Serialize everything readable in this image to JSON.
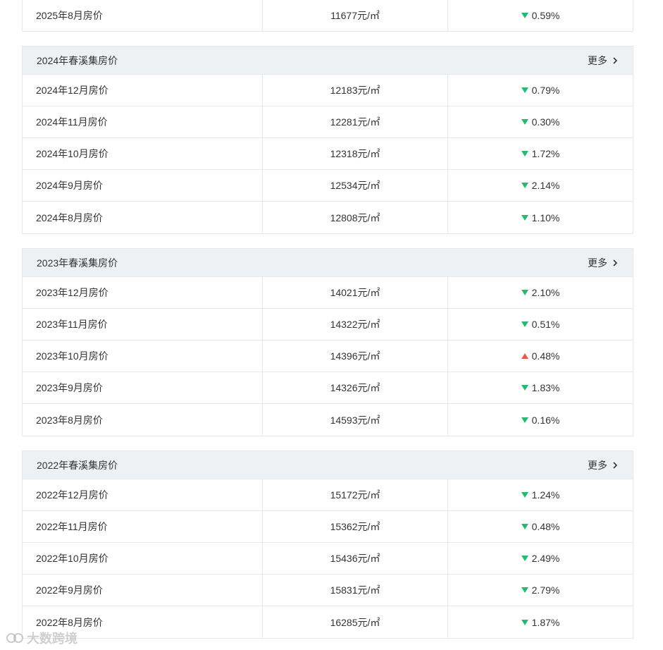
{
  "top_row": {
    "month": "2025年8月房价",
    "price": "11677元/㎡",
    "change": "0.59%",
    "dir": "down"
  },
  "sections": [
    {
      "title": "2024年春溪集房价",
      "more": "更多",
      "rows": [
        {
          "month": "2024年12月房价",
          "price": "12183元/㎡",
          "change": "0.79%",
          "dir": "down"
        },
        {
          "month": "2024年11月房价",
          "price": "12281元/㎡",
          "change": "0.30%",
          "dir": "down"
        },
        {
          "month": "2024年10月房价",
          "price": "12318元/㎡",
          "change": "1.72%",
          "dir": "down"
        },
        {
          "month": "2024年9月房价",
          "price": "12534元/㎡",
          "change": "2.14%",
          "dir": "down"
        },
        {
          "month": "2024年8月房价",
          "price": "12808元/㎡",
          "change": "1.10%",
          "dir": "down"
        }
      ]
    },
    {
      "title": "2023年春溪集房价",
      "more": "更多",
      "rows": [
        {
          "month": "2023年12月房价",
          "price": "14021元/㎡",
          "change": "2.10%",
          "dir": "down"
        },
        {
          "month": "2023年11月房价",
          "price": "14322元/㎡",
          "change": "0.51%",
          "dir": "down"
        },
        {
          "month": "2023年10月房价",
          "price": "14396元/㎡",
          "change": "0.48%",
          "dir": "up"
        },
        {
          "month": "2023年9月房价",
          "price": "14326元/㎡",
          "change": "1.83%",
          "dir": "down"
        },
        {
          "month": "2023年8月房价",
          "price": "14593元/㎡",
          "change": "0.16%",
          "dir": "down"
        }
      ]
    },
    {
      "title": "2022年春溪集房价",
      "more": "更多",
      "rows": [
        {
          "month": "2022年12月房价",
          "price": "15172元/㎡",
          "change": "1.24%",
          "dir": "down"
        },
        {
          "month": "2022年11月房价",
          "price": "15362元/㎡",
          "change": "0.48%",
          "dir": "down"
        },
        {
          "month": "2022年10月房价",
          "price": "15436元/㎡",
          "change": "2.49%",
          "dir": "down"
        },
        {
          "month": "2022年9月房价",
          "price": "15831元/㎡",
          "change": "2.79%",
          "dir": "down"
        },
        {
          "month": "2022年8月房价",
          "price": "16285元/㎡",
          "change": "1.87%",
          "dir": "down"
        }
      ]
    }
  ],
  "watermark": "大数跨境",
  "colors": {
    "down": "#2bb673",
    "up": "#e05b4b",
    "header_bg": "#eef1f4",
    "border": "#e6e8eb"
  }
}
